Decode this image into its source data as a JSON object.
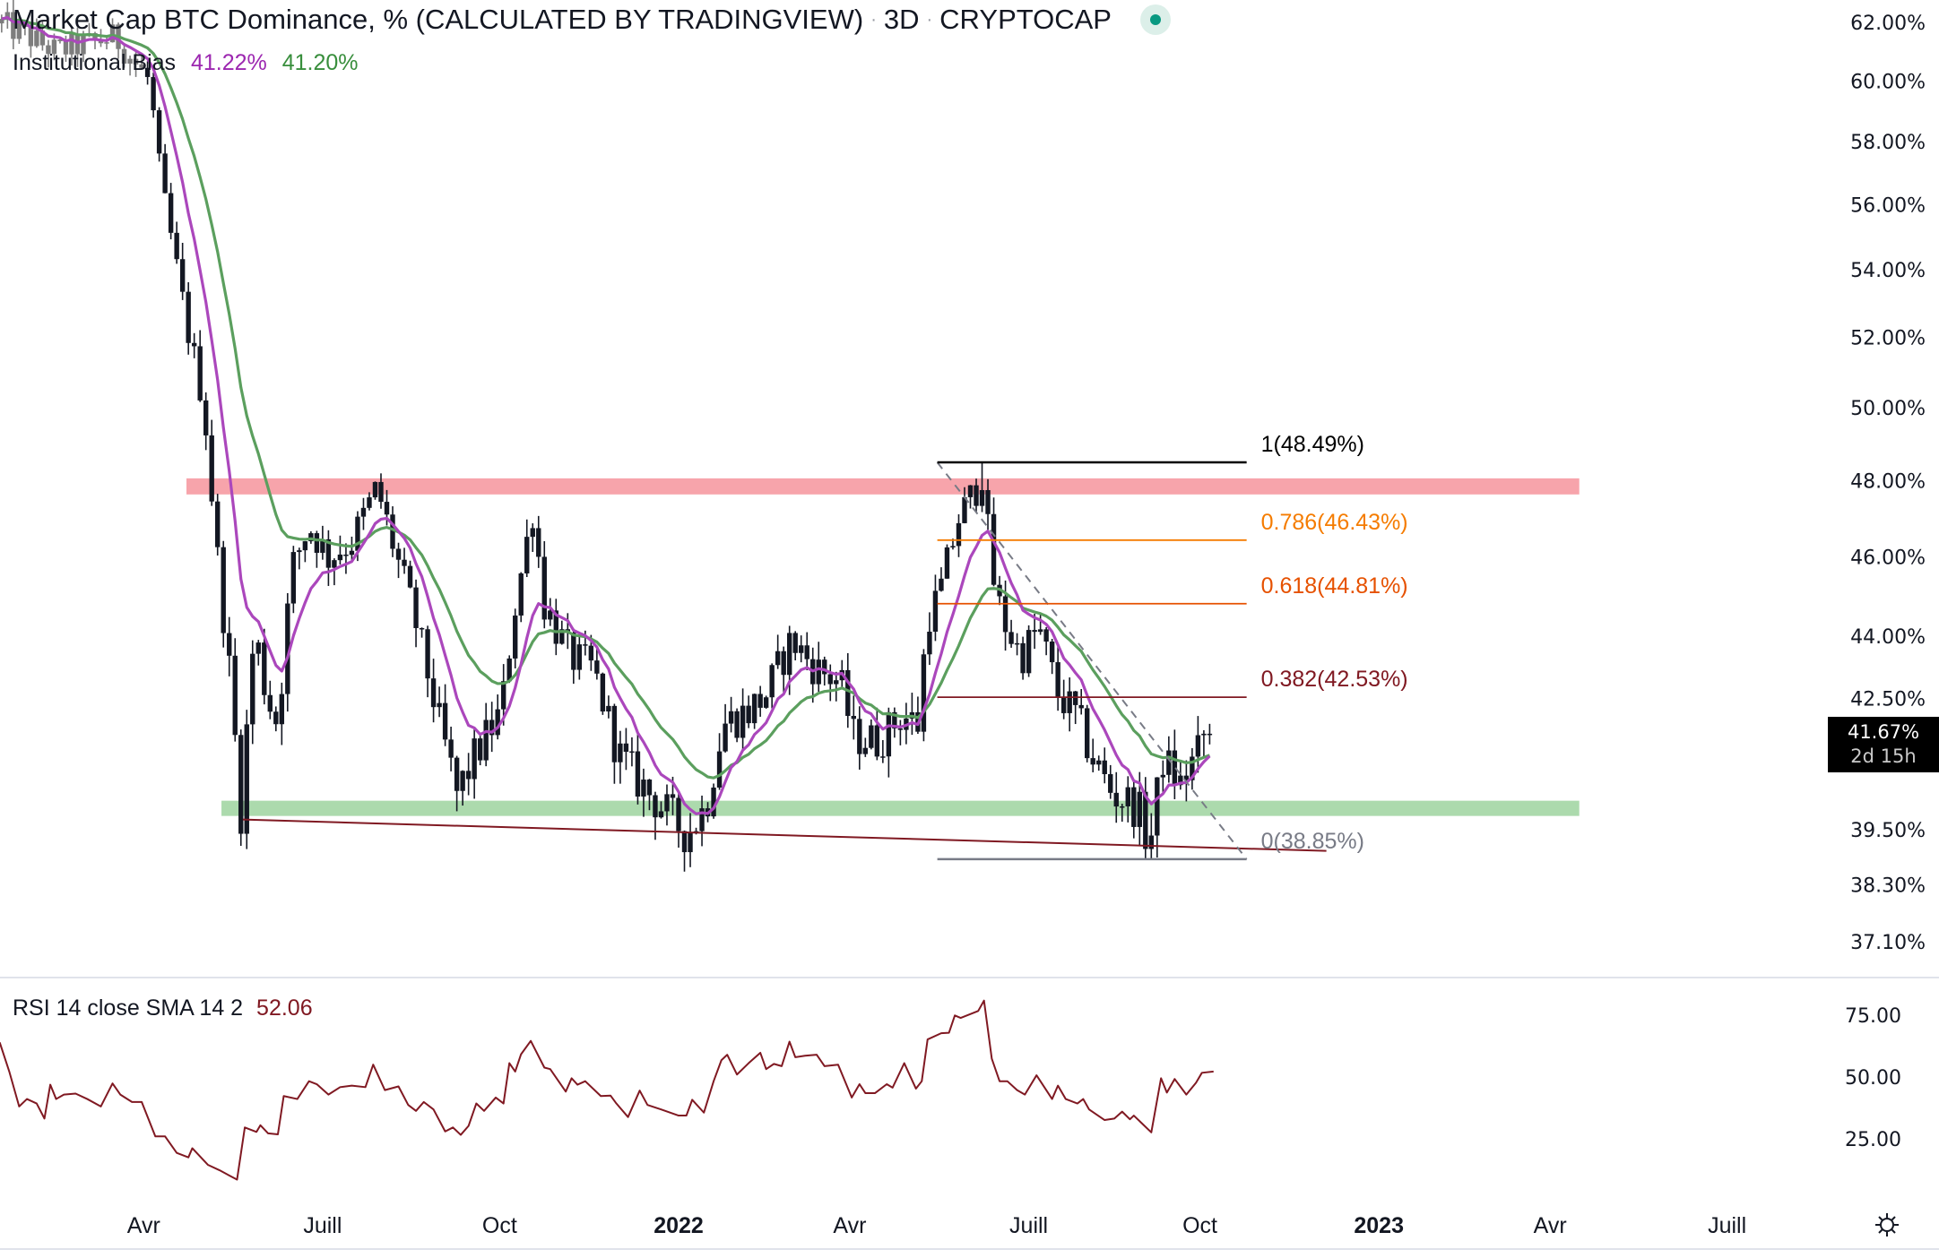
{
  "header": {
    "title": "Market Cap BTC Dominance, % (CALCULATED BY TRADINGVIEW)",
    "interval": "3D",
    "exchange": "CRYPTOCAP",
    "separator": "·",
    "status_icon": "market-open-dot"
  },
  "indicators": {
    "bias_label": "Institutional Bias",
    "bias_fast_value": "41.22%",
    "bias_slow_value": "41.20%",
    "rsi_label": "RSI 14 close SMA 14 2",
    "rsi_value": "52.06"
  },
  "price_tag": {
    "price": "41.67%",
    "countdown": "2d 15h"
  },
  "colors": {
    "candle": "#131722",
    "candle_faded": "#7d7d7d",
    "ema_fast": "#ab47bc",
    "ema_slow": "#5b9f5e",
    "resistance_zone": "#f7a4ab",
    "support_zone": "#acdaad",
    "trendline": "#801922",
    "rsi": "#801922",
    "fib_1": "#000000",
    "fib_0786": "#f57c00",
    "fib_0618": "#e65100",
    "fib_0382": "#801922",
    "fib_0": "#787b86"
  },
  "chart_data": [
    {
      "type": "candlestick",
      "title": "Market Cap BTC Dominance, %",
      "scale": "log",
      "ylabel": "%",
      "ylim": [
        36.8,
        63
      ],
      "x_unit": "days from 2022-01-01",
      "candle_interval_days": 3,
      "last_close": 41.67,
      "close_path": [
        [
          -349,
          62.0
        ],
        [
          -320,
          61.0
        ],
        [
          -290,
          61.5
        ],
        [
          -272,
          60.0
        ],
        [
          -266,
          56.6
        ],
        [
          -253,
          52.4
        ],
        [
          -244,
          50.1
        ],
        [
          -238,
          46.4
        ],
        [
          -231,
          43.2
        ],
        [
          -225,
          39.9
        ],
        [
          -218,
          44.2
        ],
        [
          -212,
          42.6
        ],
        [
          -206,
          41.9
        ],
        [
          -199,
          45.7
        ],
        [
          -190,
          46.8
        ],
        [
          -180,
          46.0
        ],
        [
          -168,
          46.4
        ],
        [
          -155,
          47.8
        ],
        [
          -145,
          46.0
        ],
        [
          -136,
          44.5
        ],
        [
          -123,
          41.9
        ],
        [
          -114,
          40.3
        ],
        [
          -104,
          41.2
        ],
        [
          -91,
          42.2
        ],
        [
          -85,
          44.5
        ],
        [
          -75,
          47.2
        ],
        [
          -69,
          44.8
        ],
        [
          -56,
          43.5
        ],
        [
          -44,
          43.2
        ],
        [
          -31,
          41.2
        ],
        [
          -21,
          40.6
        ],
        [
          -9,
          40.0
        ],
        [
          4,
          39.4
        ],
        [
          14,
          40.0
        ],
        [
          23,
          41.9
        ],
        [
          36,
          42.2
        ],
        [
          45,
          42.6
        ],
        [
          58,
          43.9
        ],
        [
          71,
          43.2
        ],
        [
          83,
          42.9
        ],
        [
          90,
          41.6
        ],
        [
          102,
          41.5
        ],
        [
          115,
          42.1
        ],
        [
          123,
          41.9
        ],
        [
          128,
          44.5
        ],
        [
          134,
          45.0
        ],
        [
          144,
          47.0
        ],
        [
          153,
          47.8
        ],
        [
          157,
          48.3
        ],
        [
          160,
          45.8
        ],
        [
          166,
          44.5
        ],
        [
          176,
          43.5
        ],
        [
          185,
          44.2
        ],
        [
          195,
          42.6
        ],
        [
          204,
          42.1
        ],
        [
          214,
          41.0
        ],
        [
          223,
          40.3
        ],
        [
          236,
          40.0
        ],
        [
          242,
          39.1
        ],
        [
          249,
          41.1
        ],
        [
          258,
          40.5
        ],
        [
          265,
          41.1
        ],
        [
          273,
          41.67
        ]
      ],
      "extremes": [
        {
          "day": 157,
          "kind": "high",
          "value": 48.49
        },
        {
          "day": 242,
          "kind": "low",
          "value": 38.85
        }
      ],
      "overlays": {
        "ema_fast": {
          "name": "Institutional Bias fast",
          "period": 9,
          "last": 41.22
        },
        "ema_slow": {
          "name": "Institutional Bias slow",
          "period": 21,
          "last": 41.2
        }
      },
      "zones": [
        {
          "name": "resistance",
          "from": 47.63,
          "to": 48.06,
          "start_day": -253,
          "end_day": 463
        },
        {
          "name": "support",
          "from": 39.8,
          "to": 40.14,
          "start_day": -235,
          "end_day": 463
        }
      ],
      "trendline": {
        "start": [
          -224,
          39.72
        ],
        "end": [
          333,
          39.03
        ]
      },
      "fibonacci": {
        "start_day": 133,
        "end_day": 292,
        "levels": [
          {
            "ratio": "1",
            "value": 48.49,
            "label": "1(48.49%)",
            "color_key": "fib_1"
          },
          {
            "ratio": "0.786",
            "value": 46.43,
            "label": "0.786(46.43%)",
            "color_key": "fib_0786"
          },
          {
            "ratio": "0.618",
            "value": 44.81,
            "label": "0.618(44.81%)",
            "color_key": "fib_0618"
          },
          {
            "ratio": "0.382",
            "value": 42.53,
            "label": "0.382(42.53%)",
            "color_key": "fib_0382"
          },
          {
            "ratio": "0",
            "value": 38.85,
            "label": "0(38.85%)",
            "color_key": "fib_0"
          }
        ]
      },
      "price_ticks": [
        {
          "value": 62.0,
          "label": "62.00%"
        },
        {
          "value": 60.0,
          "label": "60.00%"
        },
        {
          "value": 58.0,
          "label": "58.00%"
        },
        {
          "value": 56.0,
          "label": "56.00%"
        },
        {
          "value": 54.0,
          "label": "54.00%"
        },
        {
          "value": 52.0,
          "label": "52.00%"
        },
        {
          "value": 50.0,
          "label": "50.00%"
        },
        {
          "value": 48.0,
          "label": "48.00%"
        },
        {
          "value": 46.0,
          "label": "46.00%"
        },
        {
          "value": 44.0,
          "label": "44.00%"
        },
        {
          "value": 42.5,
          "label": "42.50%"
        },
        {
          "value": 39.5,
          "label": "39.50%"
        },
        {
          "value": 38.3,
          "label": "38.30%"
        },
        {
          "value": 37.1,
          "label": "37.10%"
        }
      ]
    },
    {
      "type": "line",
      "title": "RSI 14 close SMA 14 2",
      "ylim": [
        0,
        100
      ],
      "x_unit": "days from 2022-01-01",
      "ticks": [
        {
          "value": 75,
          "label": "75.00"
        },
        {
          "value": 50,
          "label": "50.00"
        },
        {
          "value": 25,
          "label": "25.00"
        }
      ],
      "points": [
        [
          -349,
          64
        ],
        [
          -344,
          52
        ],
        [
          -339,
          38.1
        ],
        [
          -335,
          41.1
        ],
        [
          -330,
          39.3
        ],
        [
          -326,
          33.2
        ],
        [
          -323,
          46.9
        ],
        [
          -320,
          41.1
        ],
        [
          -316,
          42.9
        ],
        [
          -310,
          43.3
        ],
        [
          -304,
          41.1
        ],
        [
          -297,
          38.1
        ],
        [
          -291,
          47.4
        ],
        [
          -287,
          42.9
        ],
        [
          -281,
          39.9
        ],
        [
          -276,
          39.9
        ],
        [
          -269,
          26
        ],
        [
          -264,
          26
        ],
        [
          -258,
          19.3
        ],
        [
          -252,
          17.5
        ],
        [
          -250,
          21.2
        ],
        [
          -242,
          14.5
        ],
        [
          -236,
          12.3
        ],
        [
          -227,
          8.5
        ],
        [
          -223,
          29.6
        ],
        [
          -217,
          27.8
        ],
        [
          -215,
          30.5
        ],
        [
          -211,
          27.2
        ],
        [
          -206,
          26.8
        ],
        [
          -203,
          42.3
        ],
        [
          -196,
          41.1
        ],
        [
          -190,
          48.3
        ],
        [
          -186,
          47.1
        ],
        [
          -180,
          42.9
        ],
        [
          -174,
          45.9
        ],
        [
          -168,
          46.5
        ],
        [
          -161,
          45.9
        ],
        [
          -157,
          55
        ],
        [
          -151,
          44.7
        ],
        [
          -144,
          46.2
        ],
        [
          -139,
          38.7
        ],
        [
          -135,
          36.3
        ],
        [
          -131,
          39.9
        ],
        [
          -126,
          36.9
        ],
        [
          -120,
          28
        ],
        [
          -116,
          29.6
        ],
        [
          -112,
          26.6
        ],
        [
          -108,
          30.2
        ],
        [
          -104,
          39.3
        ],
        [
          -100,
          36.3
        ],
        [
          -94,
          41.7
        ],
        [
          -90,
          39.3
        ],
        [
          -87,
          55.6
        ],
        [
          -84,
          52.2
        ],
        [
          -81,
          59.2
        ],
        [
          -76,
          64.6
        ],
        [
          -69,
          53.8
        ],
        [
          -66,
          53.2
        ],
        [
          -58,
          44.1
        ],
        [
          -55,
          49.5
        ],
        [
          -52,
          46.9
        ],
        [
          -48,
          48.3
        ],
        [
          -40,
          42.3
        ],
        [
          -35,
          42.5
        ],
        [
          -32,
          39.3
        ],
        [
          -26,
          33.8
        ],
        [
          -20,
          44.5
        ],
        [
          -16,
          38.7
        ],
        [
          -9,
          36.9
        ],
        [
          0,
          34.4
        ],
        [
          4,
          34.4
        ],
        [
          7,
          40.8
        ],
        [
          13,
          35.6
        ],
        [
          18,
          48.3
        ],
        [
          22,
          56.8
        ],
        [
          25,
          59
        ],
        [
          30,
          51
        ],
        [
          36,
          55.6
        ],
        [
          42,
          59.8
        ],
        [
          45,
          53.2
        ],
        [
          49,
          55.3
        ],
        [
          53,
          54.4
        ],
        [
          57,
          64.3
        ],
        [
          60,
          58
        ],
        [
          65,
          58.6
        ],
        [
          71,
          59
        ],
        [
          75,
          54.4
        ],
        [
          82,
          55
        ],
        [
          89,
          41.7
        ],
        [
          93,
          47.1
        ],
        [
          96,
          43.5
        ],
        [
          101,
          43.5
        ],
        [
          107,
          47.1
        ],
        [
          110,
          45.7
        ],
        [
          116,
          55.6
        ],
        [
          122,
          45.3
        ],
        [
          125,
          48.3
        ],
        [
          128,
          65.2
        ],
        [
          135,
          67.7
        ],
        [
          139,
          67.9
        ],
        [
          142,
          74.9
        ],
        [
          145,
          73.9
        ],
        [
          154,
          76.7
        ],
        [
          157,
          80.9
        ],
        [
          161,
          57.4
        ],
        [
          165,
          48.3
        ],
        [
          169,
          48.3
        ],
        [
          174,
          44.7
        ],
        [
          178,
          42.9
        ],
        [
          184,
          50.7
        ],
        [
          192,
          41.1
        ],
        [
          195,
          46.5
        ],
        [
          199,
          41.1
        ],
        [
          205,
          39.3
        ],
        [
          208,
          41.1
        ],
        [
          211,
          36.9
        ],
        [
          219,
          32.6
        ],
        [
          224,
          33.2
        ],
        [
          228,
          36
        ],
        [
          232,
          32.9
        ],
        [
          234,
          34.4
        ],
        [
          243,
          27.6
        ],
        [
          248,
          49.5
        ],
        [
          251,
          43.7
        ],
        [
          255,
          49.2
        ],
        [
          261,
          42.9
        ],
        [
          266,
          47.7
        ],
        [
          269,
          51.7
        ],
        [
          275,
          52.2
        ]
      ]
    }
  ],
  "time_axis": [
    {
      "day": -275,
      "label": "Avr",
      "bold": false
    },
    {
      "day": -183,
      "label": "Juill",
      "bold": false
    },
    {
      "day": -92,
      "label": "Oct",
      "bold": false
    },
    {
      "day": 0,
      "label": "2022",
      "bold": true
    },
    {
      "day": 88,
      "label": "Avr",
      "bold": false
    },
    {
      "day": 180,
      "label": "Juill",
      "bold": false
    },
    {
      "day": 268,
      "label": "Oct",
      "bold": false
    },
    {
      "day": 360,
      "label": "2023",
      "bold": true
    },
    {
      "day": 448,
      "label": "Avr",
      "bold": false
    },
    {
      "day": 539,
      "label": "Juill",
      "bold": false
    }
  ]
}
